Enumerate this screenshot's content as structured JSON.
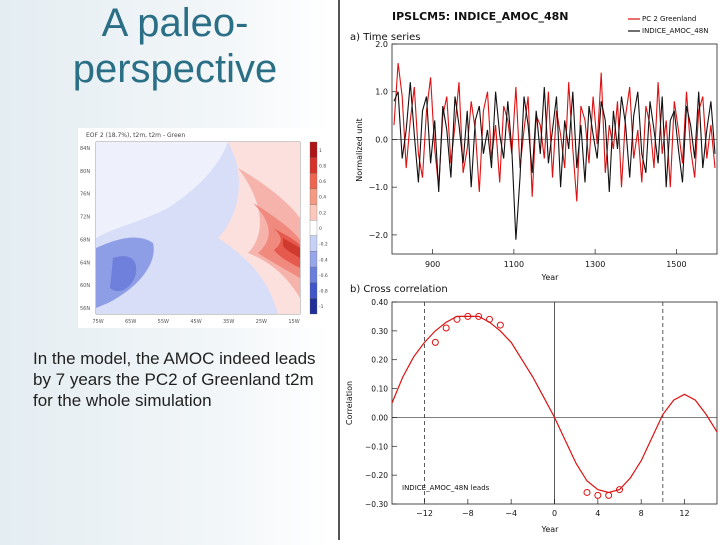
{
  "slide": {
    "title_line1": "A paleo-",
    "title_line2": "perspective",
    "body": "In the model, the AMOC indeed leads by 7 years the PC2 of Greenland t2m for the whole simulation"
  },
  "map": {
    "title": "EOF 2 (18.7%), t2m, t2m - Green",
    "lat_labels": [
      "84N",
      "80N",
      "76N",
      "72N",
      "68N",
      "64N",
      "60N",
      "56N"
    ],
    "lon_labels": [
      "75W",
      "65W",
      "55W",
      "45W",
      "35W",
      "25W",
      "15W"
    ],
    "colorbar_labels": [
      "1",
      "0.8",
      "0.6",
      "0.4",
      "0.2",
      "0",
      "-0.2",
      "-0.4",
      "-0.6",
      "-0.8",
      "-1"
    ]
  },
  "figure": {
    "title": "IPSLCM5: INDICE_AMOC_48N",
    "colors": {
      "pc2": "#dd1111",
      "amoc": "#111111"
    }
  },
  "chart_data": [
    {
      "type": "line",
      "panel_label": "a) Time series",
      "title": "IPSLCM5: INDICE_AMOC_48N",
      "xlabel": "Year",
      "ylabel": "Normalized unit",
      "xlim": [
        800,
        1600
      ],
      "ylim": [
        -2.4,
        2.0
      ],
      "xticks": [
        900,
        1100,
        1300,
        1500
      ],
      "xtick_labels": [
        "900",
        "1100",
        "1300",
        "1500"
      ],
      "yticks": [
        2.0,
        1.0,
        0.0,
        -1.0,
        -2.0
      ],
      "ytick_labels": [
        "2.0",
        "1.0",
        "0.0",
        "−1.0",
        "−2.0"
      ],
      "legend": [
        "PC 2 Greenland",
        "INDICE_AMOC_48N"
      ],
      "legend_position": "top-right",
      "series": [
        {
          "name": "PC 2 Greenland",
          "color": "#dd1111",
          "x": [
            805,
            815,
            825,
            835,
            845,
            855,
            865,
            875,
            885,
            895,
            905,
            915,
            925,
            935,
            945,
            955,
            965,
            975,
            985,
            995,
            1005,
            1015,
            1025,
            1035,
            1045,
            1055,
            1065,
            1075,
            1085,
            1095,
            1105,
            1115,
            1125,
            1135,
            1145,
            1155,
            1165,
            1175,
            1185,
            1195,
            1205,
            1215,
            1225,
            1235,
            1245,
            1255,
            1265,
            1275,
            1285,
            1295,
            1305,
            1315,
            1325,
            1335,
            1345,
            1355,
            1365,
            1375,
            1385,
            1395,
            1405,
            1415,
            1425,
            1435,
            1445,
            1455,
            1465,
            1475,
            1485,
            1495,
            1505,
            1515,
            1525,
            1535,
            1545,
            1555,
            1565,
            1575,
            1585,
            1595
          ],
          "y": [
            0.3,
            1.6,
            0.9,
            -0.6,
            0.4,
            1.1,
            -0.3,
            -0.8,
            0.6,
            1.3,
            -0.2,
            -1.0,
            0.5,
            0.9,
            -0.5,
            0.3,
            1.2,
            -0.7,
            -0.2,
            0.8,
            0.2,
            -1.1,
            0.6,
            1.0,
            -0.4,
            0.3,
            -0.9,
            0.7,
            0.4,
            -0.3,
            1.1,
            -0.6,
            0.2,
            0.9,
            -1.2,
            0.5,
            0.3,
            -0.4,
            1.0,
            -0.8,
            0.6,
            0.1,
            -0.6,
            1.2,
            -0.2,
            -1.3,
            0.7,
            0.4,
            -0.5,
            0.9,
            -0.1,
            1.4,
            -0.7,
            0.3,
            -0.2,
            0.8,
            -1.0,
            0.5,
            1.1,
            -0.4,
            0.2,
            -0.9,
            0.7,
            0.3,
            -0.6,
            1.2,
            -0.3,
            0.4,
            -1.0,
            0.8,
            0.2,
            -0.5,
            1.0,
            -0.2,
            -0.8,
            0.6,
            0.9,
            -0.4,
            0.3,
            -0.6
          ]
        },
        {
          "name": "INDICE_AMOC_48N",
          "color": "#111111",
          "x": [
            805,
            815,
            825,
            835,
            845,
            855,
            865,
            875,
            885,
            895,
            905,
            915,
            925,
            935,
            945,
            955,
            965,
            975,
            985,
            995,
            1005,
            1015,
            1025,
            1035,
            1045,
            1055,
            1065,
            1075,
            1085,
            1095,
            1105,
            1115,
            1125,
            1135,
            1145,
            1155,
            1165,
            1175,
            1185,
            1195,
            1205,
            1215,
            1225,
            1235,
            1245,
            1255,
            1265,
            1275,
            1285,
            1295,
            1305,
            1315,
            1325,
            1335,
            1345,
            1355,
            1365,
            1375,
            1385,
            1395,
            1405,
            1415,
            1425,
            1435,
            1445,
            1455,
            1465,
            1475,
            1485,
            1495,
            1505,
            1515,
            1525,
            1535,
            1545,
            1555,
            1565,
            1575,
            1585,
            1595
          ],
          "y": [
            0.8,
            1.0,
            -0.4,
            0.2,
            1.2,
            0.1,
            -0.9,
            0.6,
            0.9,
            -0.5,
            0.4,
            -1.1,
            0.7,
            0.2,
            -0.8,
            0.9,
            0.3,
            -0.5,
            0.6,
            -1.0,
            0.4,
            0.7,
            -0.3,
            0.2,
            -0.6,
            1.0,
            0.1,
            -0.4,
            0.8,
            -0.2,
            -2.1,
            -0.8,
            0.9,
            0.3,
            -0.7,
            0.6,
            -0.3,
            1.1,
            -0.5,
            0.2,
            0.9,
            -1.0,
            0.4,
            -0.2,
            1.0,
            -0.6,
            0.3,
            -0.9,
            0.7,
            0.1,
            -0.4,
            0.8,
            0.4,
            -1.1,
            0.6,
            -0.2,
            0.9,
            0.3,
            -0.8,
            0.5,
            1.0,
            -0.3,
            -0.7,
            0.8,
            0.2,
            -0.5,
            0.9,
            -1.0,
            0.4,
            0.6,
            -0.2,
            -0.9,
            0.7,
            0.3,
            -0.4,
            1.0,
            -0.6,
            0.2,
            0.8,
            -0.3
          ]
        }
      ]
    },
    {
      "type": "line",
      "panel_label": "b) Cross correlation",
      "xlabel": "Year",
      "ylabel": "Correlation",
      "xlim": [
        -15,
        15
      ],
      "ylim": [
        -0.3,
        0.4
      ],
      "xticks": [
        -12,
        -8,
        -4,
        0,
        4,
        8,
        12
      ],
      "xtick_labels": [
        "−12",
        "−8",
        "−4",
        "0",
        "4",
        "8",
        "12"
      ],
      "yticks": [
        0.4,
        0.3,
        0.2,
        0.1,
        0.0,
        -0.1,
        -0.2,
        -0.3
      ],
      "ytick_labels": [
        "0.40",
        "0.30",
        "0.20",
        "0.10",
        "0.00",
        "−0.10",
        "−0.20",
        "−0.30"
      ],
      "vertical_lines": [
        -12,
        0,
        10
      ],
      "annotation": "INDICE_AMOC_48N leads",
      "series": [
        {
          "name": "Cross correlation",
          "color": "#dd1111",
          "x": [
            -15,
            -14,
            -13,
            -12,
            -11,
            -10,
            -9,
            -8,
            -7,
            -6,
            -5,
            -4,
            -3,
            -2,
            -1,
            0,
            1,
            2,
            3,
            4,
            5,
            6,
            7,
            8,
            9,
            10,
            11,
            12,
            13,
            14,
            15
          ],
          "y": [
            0.05,
            0.14,
            0.21,
            0.26,
            0.3,
            0.33,
            0.35,
            0.35,
            0.35,
            0.33,
            0.3,
            0.26,
            0.2,
            0.14,
            0.07,
            0.0,
            -0.08,
            -0.16,
            -0.22,
            -0.25,
            -0.26,
            -0.25,
            -0.21,
            -0.15,
            -0.07,
            0.01,
            0.06,
            0.08,
            0.06,
            0.01,
            -0.05
          ]
        },
        {
          "name": "Significant points",
          "x": [
            -11,
            -10,
            -9,
            -8,
            -7,
            -6,
            -5,
            3,
            4,
            5,
            6
          ],
          "y": [
            0.26,
            0.31,
            0.34,
            0.35,
            0.35,
            0.34,
            0.32,
            -0.26,
            -0.27,
            -0.27,
            -0.25
          ]
        }
      ]
    }
  ]
}
